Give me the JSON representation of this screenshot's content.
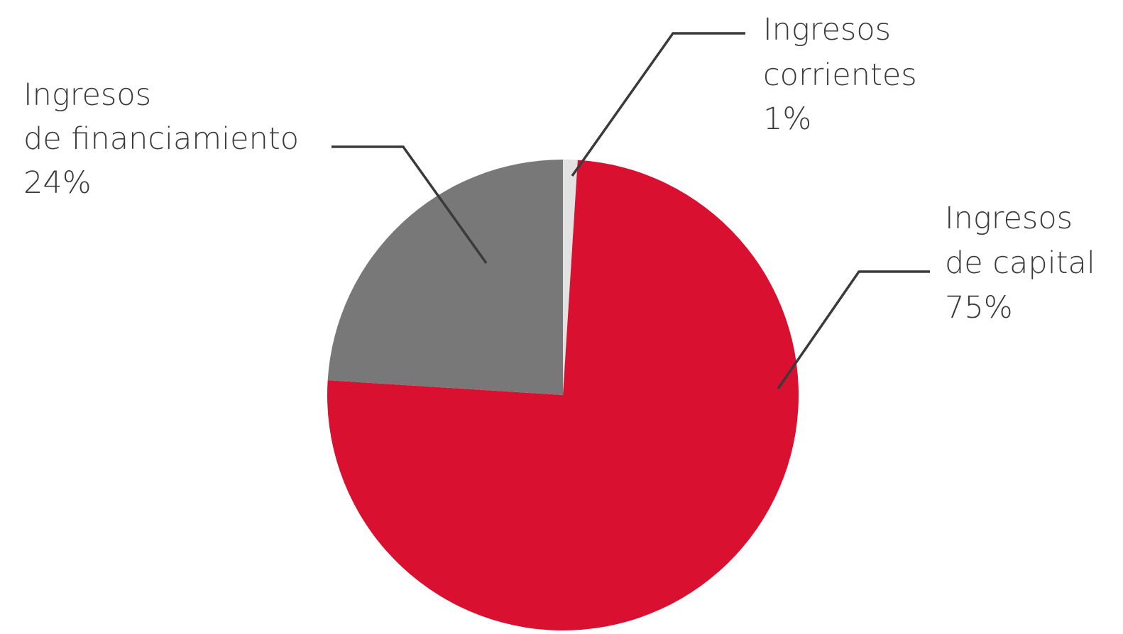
{
  "chart_data": {
    "type": "pie",
    "start_angle_deg": 0,
    "direction": "clockwise",
    "slices": [
      {
        "name": "Ingresos corrientes",
        "label_lines": [
          "Ingresos",
          "corrientes"
        ],
        "value_label": "1%",
        "value": 1,
        "color": "#e2e2e2"
      },
      {
        "name": "Ingresos de capital",
        "label_lines": [
          "Ingresos",
          "de capital"
        ],
        "value_label": "75%",
        "value": 75,
        "color": "#d91030"
      },
      {
        "name": "Ingresos de financiamiento",
        "label_lines": [
          "Ingresos",
          "de financiamiento"
        ],
        "value_label": "24%",
        "value": 24,
        "color": "#787878"
      }
    ]
  }
}
